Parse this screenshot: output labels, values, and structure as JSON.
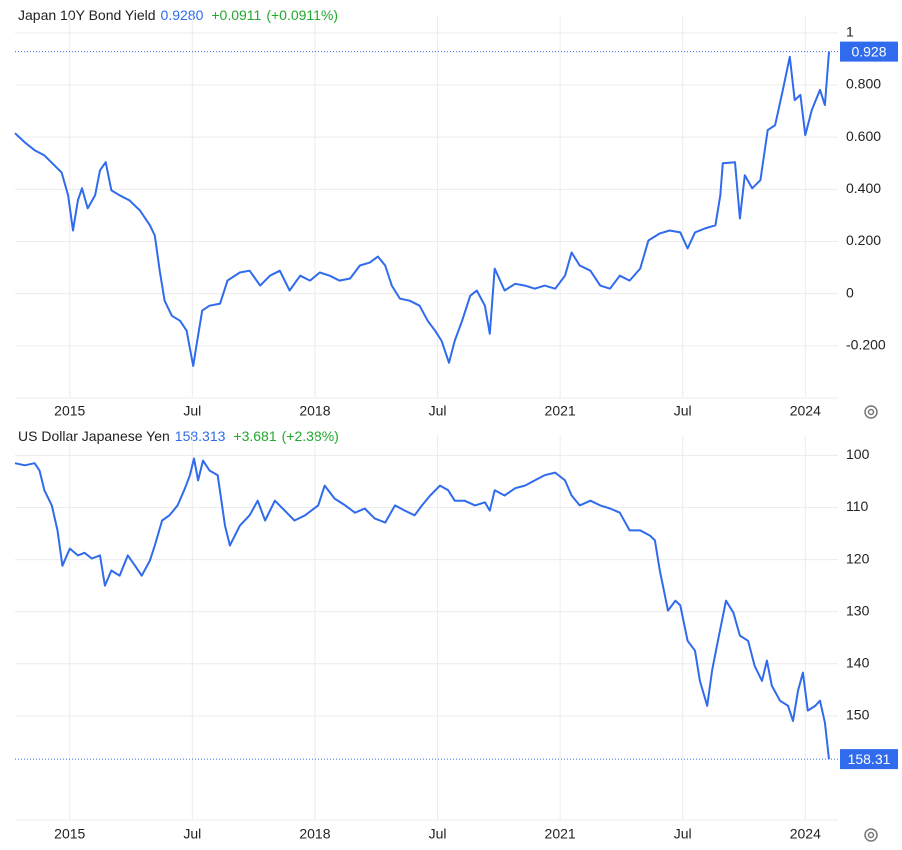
{
  "chart_data": [
    {
      "type": "line",
      "title": "Japan 10Y Bond Yield",
      "last": "0.9280",
      "change": "+0.0911",
      "change_pct": "(+0.0911%)",
      "color": "#2f6bec",
      "x": [
        2014.33,
        2014.45,
        2014.57,
        2014.69,
        2014.82,
        2014.9,
        2014.98,
        2015.04,
        2015.1,
        2015.15,
        2015.22,
        2015.31,
        2015.37,
        2015.44,
        2015.51,
        2015.61,
        2015.73,
        2015.86,
        2015.98,
        2016.04,
        2016.1,
        2016.16,
        2016.25,
        2016.35,
        2016.43,
        2016.51,
        2016.55,
        2016.62,
        2016.71,
        2016.84,
        2016.93,
        2017.08,
        2017.2,
        2017.33,
        2017.45,
        2017.57,
        2017.69,
        2017.82,
        2017.94,
        2018.06,
        2018.18,
        2018.3,
        2018.43,
        2018.55,
        2018.67,
        2018.77,
        2018.86,
        2018.94,
        2019.04,
        2019.16,
        2019.28,
        2019.38,
        2019.47,
        2019.55,
        2019.64,
        2019.71,
        2019.8,
        2019.9,
        2019.98,
        2020.08,
        2020.14,
        2020.2,
        2020.32,
        2020.45,
        2020.57,
        2020.69,
        2020.81,
        2020.94,
        2021.06,
        2021.14,
        2021.24,
        2021.37,
        2021.49,
        2021.61,
        2021.73,
        2021.85,
        2021.98,
        2022.08,
        2022.22,
        2022.34,
        2022.47,
        2022.56,
        2022.65,
        2022.77,
        2022.9,
        2022.96,
        2022.99,
        2023.14,
        2023.2,
        2023.26,
        2023.35,
        2023.45,
        2023.54,
        2023.63,
        2023.72,
        2023.81,
        2023.87,
        2023.94,
        2024.0,
        2024.08,
        2024.18,
        2024.24,
        2024.29
      ],
      "values": [
        0.615,
        0.58,
        0.55,
        0.53,
        0.49,
        0.465,
        0.377,
        0.242,
        0.358,
        0.404,
        0.327,
        0.377,
        0.473,
        0.504,
        0.396,
        0.377,
        0.358,
        0.319,
        0.262,
        0.223,
        0.088,
        -0.027,
        -0.085,
        -0.104,
        -0.142,
        -0.277,
        -0.2,
        -0.065,
        -0.046,
        -0.038,
        0.05,
        0.081,
        0.088,
        0.031,
        0.069,
        0.088,
        0.012,
        0.069,
        0.05,
        0.081,
        0.069,
        0.05,
        0.058,
        0.108,
        0.119,
        0.142,
        0.108,
        0.031,
        -0.019,
        -0.027,
        -0.046,
        -0.104,
        -0.142,
        -0.181,
        -0.265,
        -0.181,
        -0.104,
        -0.008,
        0.012,
        -0.046,
        -0.154,
        0.096,
        0.012,
        0.038,
        0.031,
        0.019,
        0.031,
        0.019,
        0.069,
        0.158,
        0.108,
        0.088,
        0.031,
        0.019,
        0.069,
        0.05,
        0.096,
        0.204,
        0.231,
        0.242,
        0.235,
        0.173,
        0.235,
        0.25,
        0.262,
        0.377,
        0.5,
        0.504,
        0.288,
        0.454,
        0.404,
        0.435,
        0.627,
        0.646,
        0.773,
        0.908,
        0.742,
        0.762,
        0.608,
        0.704,
        0.781,
        0.723,
        0.928
      ],
      "xlim": [
        2014.33,
        2024.4
      ],
      "xticks": [
        2015,
        {
          "value": 2016.5,
          "label": "Jul"
        },
        2018,
        {
          "value": 2019.5,
          "label": "Jul"
        },
        2021,
        {
          "value": 2022.5,
          "label": "Jul"
        },
        2024
      ],
      "ylim": [
        -0.4,
        1.03
      ],
      "yticks": [
        1,
        {
          "value": 0.8,
          "label": "0.800"
        },
        {
          "value": 0.6,
          "label": "0.600"
        },
        {
          "value": 0.4,
          "label": "0.400"
        },
        {
          "value": 0.2,
          "label": "0.200"
        },
        0,
        {
          "value": -0.2,
          "label": "-0.200"
        }
      ],
      "y_inverted": false,
      "grid": true
    },
    {
      "type": "line",
      "title": "US Dollar Japanese Yen",
      "last": "158.313",
      "change": "+3.681",
      "change_pct": "(+2.38%)",
      "color": "#2f6bec",
      "x": [
        2014.33,
        2014.45,
        2014.57,
        2014.63,
        2014.69,
        2014.78,
        2014.85,
        2014.91,
        2015.0,
        2015.1,
        2015.18,
        2015.27,
        2015.37,
        2015.43,
        2015.51,
        2015.61,
        2015.71,
        2015.8,
        2015.88,
        2015.98,
        2016.04,
        2016.13,
        2016.22,
        2016.32,
        2016.41,
        2016.47,
        2016.52,
        2016.57,
        2016.63,
        2016.71,
        2016.81,
        2016.9,
        2016.96,
        2017.08,
        2017.2,
        2017.3,
        2017.39,
        2017.51,
        2017.63,
        2017.75,
        2017.88,
        2018.04,
        2018.12,
        2018.24,
        2018.37,
        2018.49,
        2018.61,
        2018.73,
        2018.86,
        2018.98,
        2019.1,
        2019.22,
        2019.31,
        2019.41,
        2019.53,
        2019.63,
        2019.71,
        2019.83,
        2019.96,
        2020.08,
        2020.14,
        2020.2,
        2020.32,
        2020.45,
        2020.57,
        2020.69,
        2020.81,
        2020.94,
        2021.06,
        2021.14,
        2021.24,
        2021.37,
        2021.49,
        2021.61,
        2021.73,
        2021.85,
        2021.98,
        2022.1,
        2022.16,
        2022.22,
        2022.32,
        2022.41,
        2022.47,
        2022.56,
        2022.65,
        2022.71,
        2022.8,
        2022.86,
        2022.93,
        2023.03,
        2023.12,
        2023.2,
        2023.3,
        2023.38,
        2023.47,
        2023.53,
        2023.59,
        2023.69,
        2023.79,
        2023.85,
        2023.91,
        2023.97,
        2024.03,
        2024.12,
        2024.18,
        2024.24,
        2024.29
      ],
      "values": [
        101.5,
        101.9,
        101.5,
        102.9,
        106.7,
        109.6,
        114.4,
        121.2,
        117.9,
        119.2,
        118.7,
        119.8,
        119.2,
        125.0,
        122.1,
        123.1,
        119.2,
        121.2,
        123.1,
        120.2,
        117.3,
        112.5,
        111.5,
        109.6,
        106.3,
        103.8,
        100.6,
        104.8,
        101.0,
        102.9,
        103.8,
        113.5,
        117.3,
        113.5,
        111.5,
        108.7,
        112.5,
        108.7,
        110.6,
        112.5,
        111.5,
        109.6,
        105.8,
        108.3,
        109.6,
        111.0,
        110.2,
        112.1,
        112.9,
        109.6,
        110.6,
        111.5,
        109.6,
        107.7,
        105.8,
        106.7,
        108.7,
        108.7,
        109.6,
        109.0,
        110.6,
        106.7,
        107.7,
        106.3,
        105.8,
        104.8,
        103.8,
        103.3,
        104.8,
        107.7,
        109.6,
        108.7,
        109.6,
        110.2,
        111.0,
        114.4,
        114.4,
        115.4,
        116.3,
        122.1,
        129.8,
        127.9,
        128.8,
        135.6,
        137.5,
        143.3,
        148.1,
        141.3,
        135.6,
        127.9,
        130.2,
        134.6,
        135.6,
        140.4,
        143.3,
        139.4,
        144.2,
        147.1,
        148.1,
        151.0,
        145.2,
        141.7,
        149.0,
        148.1,
        147.1,
        151.3,
        158.31
      ],
      "xlim": [
        2014.33,
        2024.4
      ],
      "xticks": [
        2015,
        {
          "value": 2016.5,
          "label": "Jul"
        },
        2018,
        {
          "value": 2019.5,
          "label": "Jul"
        },
        2021,
        {
          "value": 2022.5,
          "label": "Jul"
        },
        2024
      ],
      "ylim": [
        98,
        170
      ],
      "yticks": [
        100,
        110,
        120,
        130,
        140,
        150
      ],
      "y_inverted": true,
      "grid": true
    }
  ]
}
